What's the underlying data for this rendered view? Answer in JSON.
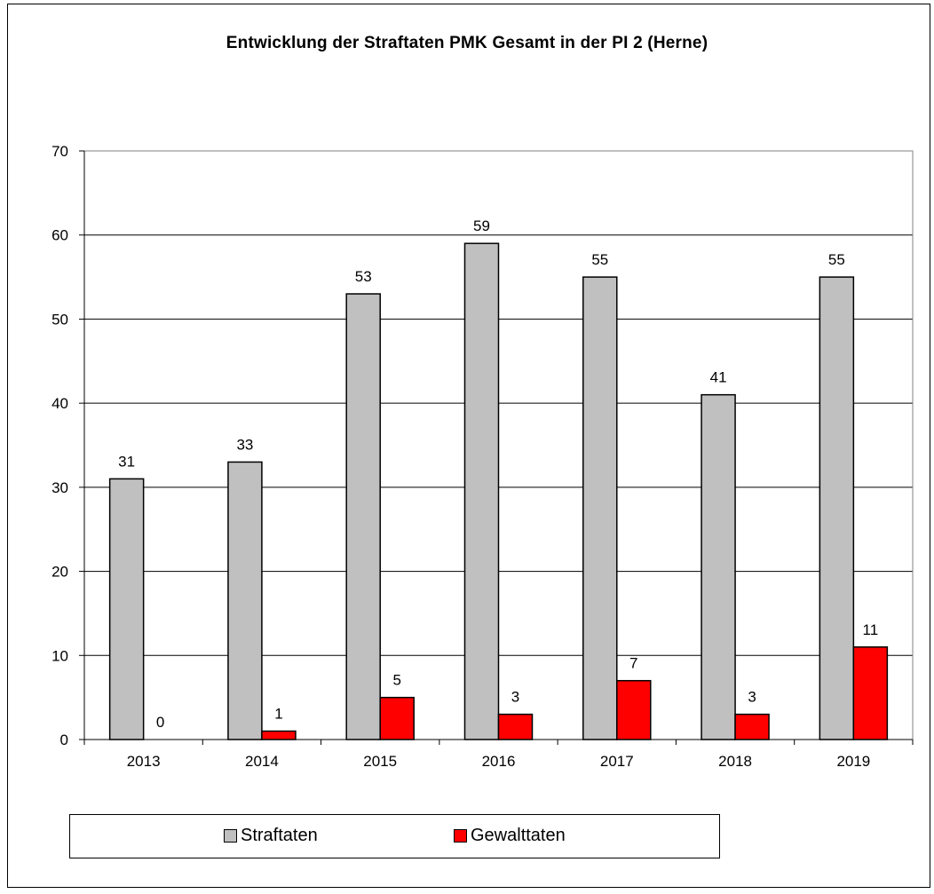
{
  "chart_data": {
    "type": "bar",
    "title": "Entwicklung der Straftaten PMK Gesamt in der PI 2 (Herne)",
    "categories": [
      "2013",
      "2014",
      "2015",
      "2016",
      "2017",
      "2018",
      "2019"
    ],
    "series": [
      {
        "name": "Straftaten",
        "values": [
          31,
          33,
          53,
          59,
          55,
          41,
          55
        ],
        "color": "#c0c0c0"
      },
      {
        "name": "Gewalttaten",
        "values": [
          0,
          1,
          5,
          3,
          7,
          3,
          11
        ],
        "color": "#ff0000"
      }
    ],
    "ylim": [
      0,
      70
    ],
    "yticks": [
      0,
      10,
      20,
      30,
      40,
      50,
      60,
      70
    ],
    "grid": true,
    "legend_position": "bottom"
  }
}
